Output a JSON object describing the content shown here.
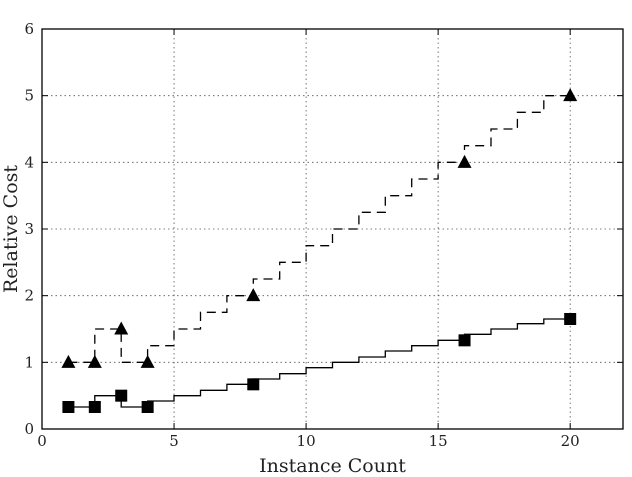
{
  "chart_data": {
    "type": "line",
    "title": "",
    "xlabel": "Instance Count",
    "ylabel": "Relative Cost",
    "xlim": [
      0,
      22
    ],
    "ylim": [
      0,
      6
    ],
    "xticks": [
      0,
      5,
      10,
      15,
      20
    ],
    "yticks": [
      0,
      1,
      2,
      3,
      4,
      5,
      6
    ],
    "grid": true,
    "legend": "none",
    "series": [
      {
        "marker": "triangle",
        "line_style": "dashed",
        "step_line": [
          [
            1,
            1.0
          ],
          [
            2,
            1.0
          ],
          [
            2,
            1.5
          ],
          [
            3,
            1.5
          ],
          [
            3,
            1.0
          ],
          [
            4,
            1.0
          ],
          [
            4,
            1.25
          ],
          [
            5,
            1.25
          ],
          [
            5,
            1.5
          ],
          [
            6,
            1.5
          ],
          [
            6,
            1.75
          ],
          [
            7,
            1.75
          ],
          [
            7,
            2.0
          ],
          [
            8,
            2.0
          ],
          [
            8,
            2.25
          ],
          [
            9,
            2.25
          ],
          [
            9,
            2.5
          ],
          [
            10,
            2.5
          ],
          [
            10,
            2.75
          ],
          [
            11,
            2.75
          ],
          [
            11,
            3.0
          ],
          [
            12,
            3.0
          ],
          [
            12,
            3.25
          ],
          [
            13,
            3.25
          ],
          [
            13,
            3.5
          ],
          [
            14,
            3.5
          ],
          [
            14,
            3.75
          ],
          [
            15,
            3.75
          ],
          [
            15,
            4.0
          ],
          [
            16,
            4.0
          ],
          [
            16,
            4.25
          ],
          [
            17,
            4.25
          ],
          [
            17,
            4.5
          ],
          [
            18,
            4.5
          ],
          [
            18,
            4.75
          ],
          [
            19,
            4.75
          ],
          [
            19,
            5.0
          ],
          [
            20,
            5.0
          ]
        ],
        "points": [
          [
            1,
            1.0
          ],
          [
            2,
            1.0
          ],
          [
            3,
            1.5
          ],
          [
            4,
            1.0
          ],
          [
            8,
            2.0
          ],
          [
            16,
            4.0
          ],
          [
            20,
            5.0
          ]
        ]
      },
      {
        "marker": "square",
        "line_style": "solid",
        "step_line": [
          [
            1,
            0.33
          ],
          [
            2,
            0.33
          ],
          [
            2,
            0.5
          ],
          [
            3,
            0.5
          ],
          [
            3,
            0.33
          ],
          [
            4,
            0.33
          ],
          [
            4,
            0.42
          ],
          [
            5,
            0.42
          ],
          [
            5,
            0.5
          ],
          [
            6,
            0.5
          ],
          [
            6,
            0.58
          ],
          [
            7,
            0.58
          ],
          [
            7,
            0.67
          ],
          [
            8,
            0.67
          ],
          [
            8,
            0.75
          ],
          [
            9,
            0.75
          ],
          [
            9,
            0.83
          ],
          [
            10,
            0.83
          ],
          [
            10,
            0.92
          ],
          [
            11,
            0.92
          ],
          [
            11,
            1.0
          ],
          [
            12,
            1.0
          ],
          [
            12,
            1.08
          ],
          [
            13,
            1.08
          ],
          [
            13,
            1.17
          ],
          [
            14,
            1.17
          ],
          [
            14,
            1.25
          ],
          [
            15,
            1.25
          ],
          [
            15,
            1.33
          ],
          [
            16,
            1.33
          ],
          [
            16,
            1.42
          ],
          [
            17,
            1.42
          ],
          [
            17,
            1.5
          ],
          [
            18,
            1.5
          ],
          [
            18,
            1.58
          ],
          [
            19,
            1.58
          ],
          [
            19,
            1.65
          ],
          [
            20,
            1.65
          ]
        ],
        "points": [
          [
            1,
            0.33
          ],
          [
            2,
            0.33
          ],
          [
            3,
            0.5
          ],
          [
            4,
            0.33
          ],
          [
            8,
            0.67
          ],
          [
            16,
            1.33
          ],
          [
            20,
            1.65
          ]
        ]
      }
    ]
  }
}
